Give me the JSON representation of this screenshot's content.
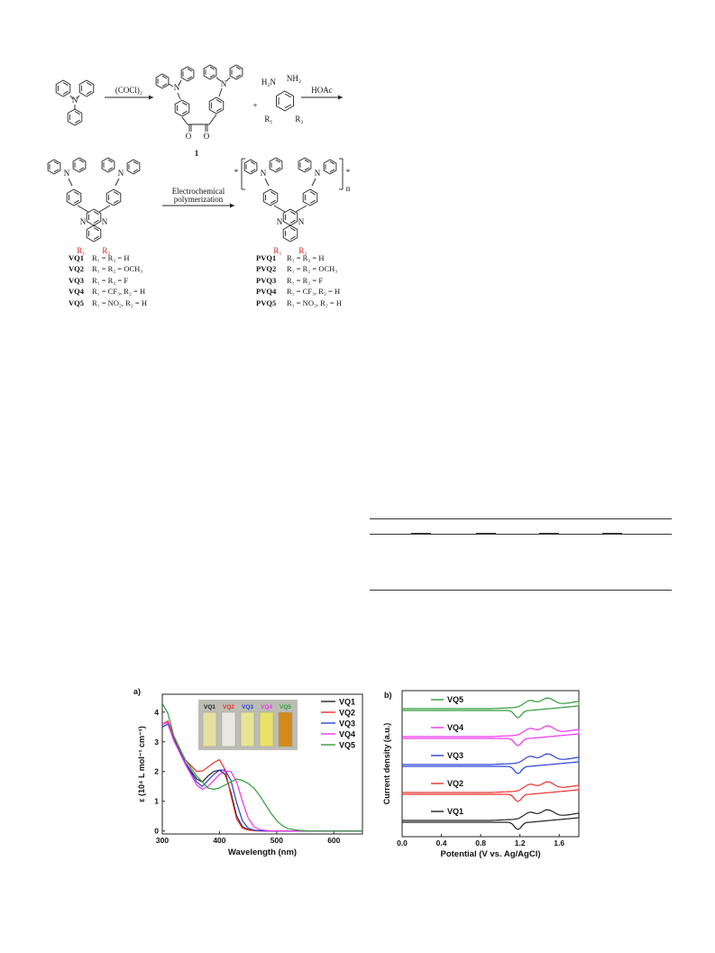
{
  "scheme": {
    "reagent_1": "(COCl)₂",
    "reagent_2": "HOAc",
    "reagent_3_line1": "Electrochemical",
    "reagent_3_line2": "polymerization",
    "compound_1_label": "1",
    "plus": "+",
    "atom_N": "N",
    "atom_O": "O",
    "atom_H2N": "H₂N",
    "atom_NH2": "NH₂",
    "r1": "R₁",
    "r2": "R₂",
    "polymer_n": "n",
    "monomers": [
      {
        "name": "VQ1",
        "sub": "R₁ = R₂ = H"
      },
      {
        "name": "VQ2",
        "sub": "R₁ = R₂ = OCH₃"
      },
      {
        "name": "VQ3",
        "sub": "R₁ = R₂ = F"
      },
      {
        "name": "VQ4",
        "sub": "R₁ = CF₃, R₂ = H"
      },
      {
        "name": "VQ5",
        "sub": "R₁ = NO₂, R₂ = H"
      }
    ],
    "polymers": [
      {
        "name": "PVQ1",
        "sub": "R₁ = R₂ = H"
      },
      {
        "name": "PVQ2",
        "sub": "R₁ = R₂ = OCH₃"
      },
      {
        "name": "PVQ3",
        "sub": "R₁ = R₂ = F"
      },
      {
        "name": "PVQ4",
        "sub": "R₁ = CF₃, R₂ = H"
      },
      {
        "name": "PVQ5",
        "sub": "R₁ = NO₂, R₂ = H"
      }
    ]
  },
  "chart_data": [
    {
      "type": "line",
      "panel_label": "a)",
      "xlabel": "Wavelength (nm)",
      "ylabel": "ε (10⁴ L mol⁻¹ cm⁻¹)",
      "xlim": [
        300,
        650
      ],
      "ylim": [
        -0.1,
        4.6
      ],
      "xticks": [
        300,
        400,
        500,
        600
      ],
      "yticks": [
        0,
        1,
        2,
        3,
        4
      ],
      "legend_position": "top-right",
      "inset_labels": [
        "VQ1",
        "VQ2",
        "VQ3",
        "VQ4",
        "VQ5"
      ],
      "x": [
        300,
        310,
        320,
        340,
        360,
        370,
        380,
        390,
        400,
        410,
        420,
        430,
        440,
        450,
        460,
        470,
        480,
        490,
        500,
        510,
        520,
        540,
        560,
        600,
        650
      ],
      "series": [
        {
          "name": "VQ1",
          "color": "#222222",
          "values": [
            3.5,
            3.6,
            3.1,
            2.3,
            1.75,
            1.65,
            1.85,
            2.0,
            2.05,
            1.9,
            1.3,
            0.5,
            0.15,
            0.05,
            0.02,
            0.01,
            0.0,
            0.0,
            0.0,
            0.0,
            0.0,
            0.0,
            0.0,
            0.0,
            0.0
          ]
        },
        {
          "name": "VQ2",
          "color": "#e8302c",
          "values": [
            3.6,
            3.7,
            3.2,
            2.4,
            2.0,
            2.02,
            2.15,
            2.3,
            2.4,
            2.05,
            1.2,
            0.4,
            0.1,
            0.03,
            0.01,
            0.0,
            0.0,
            0.0,
            0.0,
            0.0,
            0.0,
            0.0,
            0.0,
            0.0,
            0.0
          ]
        },
        {
          "name": "VQ3",
          "color": "#2b3ed6",
          "values": [
            3.5,
            3.6,
            3.05,
            2.3,
            1.65,
            1.5,
            1.7,
            1.9,
            2.05,
            2.05,
            1.7,
            0.95,
            0.35,
            0.1,
            0.03,
            0.01,
            0.0,
            0.0,
            0.0,
            0.0,
            0.0,
            0.0,
            0.0,
            0.0,
            0.0
          ]
        },
        {
          "name": "VQ4",
          "color": "#ee33ee",
          "values": [
            3.6,
            3.65,
            3.05,
            2.25,
            1.55,
            1.4,
            1.5,
            1.7,
            1.9,
            2.02,
            2.0,
            1.65,
            1.0,
            0.45,
            0.15,
            0.05,
            0.02,
            0.0,
            0.0,
            0.0,
            0.0,
            0.0,
            0.0,
            0.0,
            0.0
          ]
        },
        {
          "name": "VQ5",
          "color": "#2f9b3a",
          "values": [
            4.3,
            3.95,
            3.2,
            2.4,
            1.85,
            1.65,
            1.45,
            1.4,
            1.45,
            1.55,
            1.65,
            1.75,
            1.7,
            1.6,
            1.45,
            1.2,
            0.9,
            0.6,
            0.35,
            0.18,
            0.08,
            0.02,
            0.0,
            0.0,
            0.0
          ]
        }
      ]
    },
    {
      "type": "line",
      "panel_label": "b)",
      "xlabel": "Potential (V vs. Ag/AgCl)",
      "ylabel": "Current density (a.u.)",
      "xlim": [
        0.0,
        1.8
      ],
      "xticks": [
        0.0,
        0.4,
        0.8,
        1.2,
        1.6
      ],
      "legend_position": "inline",
      "series": [
        {
          "name": "VQ5",
          "color": "#2f9b3a",
          "offset": 4
        },
        {
          "name": "VQ4",
          "color": "#ee33ee",
          "offset": 3
        },
        {
          "name": "VQ3",
          "color": "#2b3ed6",
          "offset": 2
        },
        {
          "name": "VQ2",
          "color": "#e8302c",
          "offset": 1
        },
        {
          "name": "VQ1",
          "color": "#222222",
          "offset": 0
        }
      ]
    }
  ]
}
